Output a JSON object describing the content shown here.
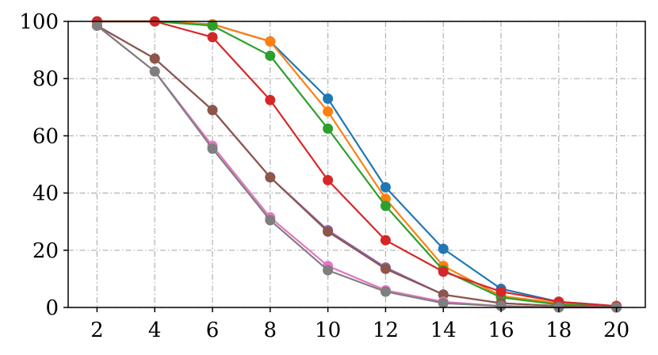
{
  "chart_data": {
    "type": "line",
    "title": "",
    "xlabel": "",
    "ylabel": "",
    "x": [
      2,
      4,
      6,
      8,
      10,
      12,
      14,
      16,
      18,
      20
    ],
    "xlim": [
      1,
      21
    ],
    "ylim": [
      0,
      100
    ],
    "xticks": [
      2,
      4,
      6,
      8,
      10,
      12,
      14,
      16,
      18,
      20
    ],
    "yticks": [
      0,
      20,
      40,
      60,
      80,
      100
    ],
    "grid": true,
    "legend": "none",
    "series": [
      {
        "color": "#1f77b4",
        "values": [
          100,
          100,
          99,
          93,
          73,
          42,
          20.5,
          6.5,
          2,
          0.5
        ]
      },
      {
        "color": "#ff7f0e",
        "values": [
          100,
          100,
          99,
          93,
          68.5,
          38,
          14.5,
          4,
          1.5,
          0.5
        ]
      },
      {
        "color": "#2ca02c",
        "values": [
          100,
          100,
          98.5,
          88,
          62.5,
          35.5,
          13,
          3.5,
          1,
          0.5
        ]
      },
      {
        "color": "#d62728",
        "values": [
          100,
          100,
          94.5,
          72.5,
          44.5,
          23.5,
          12.5,
          5.5,
          2,
          0.5
        ]
      },
      {
        "color": "#9467bd",
        "values": [
          98.5,
          87,
          69,
          45.5,
          27,
          14,
          4.5,
          1.5,
          0.5,
          0
        ]
      },
      {
        "color": "#8c564b",
        "values": [
          98.5,
          87,
          69,
          45.5,
          26.5,
          13.5,
          4.5,
          1.5,
          0.5,
          0
        ]
      },
      {
        "color": "#e377c2",
        "values": [
          98.5,
          82.5,
          56.5,
          31.5,
          14.5,
          6,
          2,
          0.5,
          0,
          0
        ]
      },
      {
        "color": "#7f7f7f",
        "values": [
          98.5,
          82.5,
          55.5,
          30.5,
          13,
          5.5,
          1.5,
          0.5,
          0,
          0
        ]
      }
    ]
  }
}
